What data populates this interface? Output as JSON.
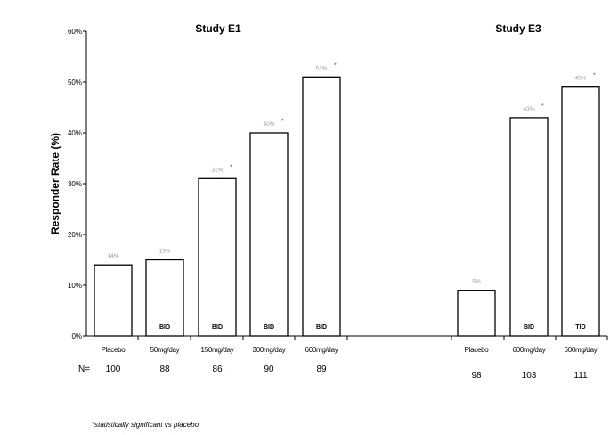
{
  "chart_data": [
    {
      "type": "bar",
      "title": "Study E1",
      "ylabel": "Responder Rate (%)",
      "ylim": [
        0,
        60
      ],
      "yticks": [
        "0%",
        "10%",
        "20%",
        "30%",
        "40%",
        "50%",
        "60%"
      ],
      "categories": [
        "Placebo",
        "50mg/day",
        "150mg/day",
        "300mg/day",
        "600mg/day"
      ],
      "values": [
        14,
        15,
        31,
        40,
        51
      ],
      "data_labels": [
        "14%",
        "15%",
        "31%",
        "40%",
        "51%"
      ],
      "significant": [
        false,
        false,
        true,
        true,
        true
      ],
      "dosing": [
        "",
        "BID",
        "BID",
        "BID",
        "BID"
      ],
      "n_label": "N=",
      "n": [
        "100",
        "88",
        "86",
        "90",
        "89"
      ]
    },
    {
      "type": "bar",
      "title": "Study E3",
      "ylim": [
        0,
        60
      ],
      "categories": [
        "Placebo",
        "600mg/day",
        "600mg/day"
      ],
      "values": [
        9,
        43,
        49
      ],
      "data_labels": [
        "9%",
        "43%",
        "49%"
      ],
      "significant": [
        false,
        true,
        true
      ],
      "dosing": [
        "",
        "BID",
        "TID"
      ],
      "n": [
        "98",
        "103",
        "111"
      ]
    }
  ],
  "footnote": "*statistically significant vs placebo",
  "colors": {
    "bar_fill": "#ffffff",
    "bar_stroke": "#000000",
    "data_label": "#999999"
  }
}
